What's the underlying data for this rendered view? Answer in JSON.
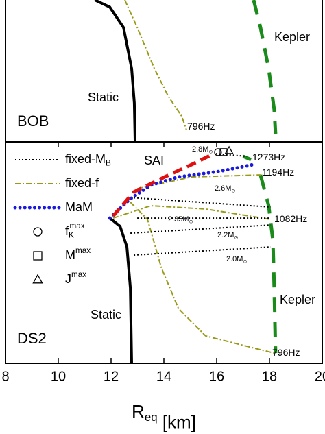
{
  "chart_data": [
    {
      "type": "line",
      "panel_label": "BOB",
      "xlim": [
        8,
        20
      ],
      "ylim": [
        0,
        100
      ],
      "series": [
        {
          "x": [
            11.38,
            11.95,
            12.47,
            12.78,
            12.88,
            12.91
          ],
          "values": [
            100,
            95,
            80.5,
            51.2,
            26.8,
            0
          ],
          "color": "#000000",
          "style": "solid"
        },
        {
          "x": [
            12.52,
            12.99,
            13.64,
            14.16,
            14.68,
            14.86
          ],
          "values": [
            100,
            80.5,
            51.2,
            31.7,
            17.1,
            7.3
          ],
          "color": "#9a9a1a",
          "style": "dashdot"
        },
        {
          "x": [
            17.4,
            17.66,
            17.97,
            18.18,
            18.23
          ],
          "values": [
            100,
            80.5,
            51.2,
            22,
            4.9
          ],
          "color": "#1a8a1a",
          "style": "dashed"
        }
      ],
      "annotations": [
        {
          "text": "Static"
        },
        {
          "text": "796Hz"
        },
        {
          "text": "Kepler"
        }
      ]
    },
    {
      "type": "line",
      "panel_label": "DS2",
      "xlim": [
        8,
        20
      ],
      "ylim": [
        0,
        100
      ],
      "xticks": [
        8,
        10,
        12,
        14,
        16,
        18,
        20
      ],
      "xlabel": {
        "text": "R",
        "sub": "eq",
        "rest": " [km]"
      },
      "series": [
        {
          "x": [
            11.95,
            12.34,
            12.6,
            12.73,
            12.78
          ],
          "values": [
            65.6,
            61.9,
            52.6,
            34.1,
            0
          ],
          "color": "#000000",
          "style": "solid"
        },
        {
          "x": [
            17.0,
            17.3,
            null,
            17.66,
            17.97,
            18.13,
            18.18,
            18.23
          ],
          "values": [
            93.5,
            92.0,
            null,
            85.1,
            71.2,
            55.7,
            34.1,
            4.6
          ],
          "color": "#1a8a1a",
          "style": "dashed"
        },
        {
          "x": [
            12.73,
            13.38,
            13.9,
            14.55,
            15.58,
            18.18,
            null,
            12.08,
            13.51,
            15.58,
            18.05,
            null,
            12.99,
            15.06,
            17.66
          ],
          "values": [
            72.8,
            65.0,
            43.3,
            24.8,
            12.4,
            4.6,
            null,
            65.6,
            71.2,
            69.7,
            65.0,
            null,
            78.9,
            84.2,
            85.1
          ],
          "color": "#9a9a1a",
          "style": "dashdot"
        },
        {
          "x": [
            12.73,
            18.05,
            null,
            12.99,
            18.05,
            null,
            12.73,
            18.05,
            null,
            12.86,
            18.05,
            null,
            15.97,
            17.14
          ],
          "values": [
            74.9,
            70.6,
            null,
            65.6,
            65.6,
            null,
            58.8,
            62.5,
            null,
            48.9,
            52.6,
            null,
            94.7,
            93.5
          ],
          "color": "#000000",
          "style": "dotted"
        },
        {
          "x": [
            11.95,
            12.73,
            13.51,
            14.55,
            16.1,
            17.4
          ],
          "values": [
            65.6,
            74.3,
            80.5,
            84.2,
            86.7,
            89.8
          ],
          "color": "#1a1adf",
          "style": "bigdot"
        },
        {
          "x": [
            12.08,
            12.86,
            14.03,
            15.06,
            15.84
          ],
          "values": [
            66.6,
            77.4,
            84.2,
            89.8,
            94.4
          ],
          "color": "#e01010",
          "style": "reddash"
        }
      ],
      "points": [
        {
          "x": 16.05,
          "y": 95.4,
          "shape": "circle"
        },
        {
          "x": 16.26,
          "y": 95.4,
          "shape": "square"
        },
        {
          "x": 16.47,
          "y": 96.0,
          "shape": "triangle"
        }
      ],
      "legend": [
        {
          "text": "fixed-M",
          "sub": "B",
          "style": "dotted",
          "color": "#000000"
        },
        {
          "text": "fixed-f",
          "style": "dashdot",
          "color": "#9a9a1a"
        },
        {
          "text": "MaM",
          "style": "bigdot",
          "color": "#1a1adf"
        },
        {
          "text": "f",
          "sub": "K",
          "sup": "max",
          "shape": "circle"
        },
        {
          "text": "M",
          "sup": "max",
          "shape": "square"
        },
        {
          "text": "J",
          "sup": "max",
          "shape": "triangle"
        }
      ],
      "annotations": [
        {
          "text": "Static"
        },
        {
          "text": "Kepler"
        },
        {
          "text": "SAI"
        },
        {
          "text": "1273Hz"
        },
        {
          "text": "1194Hz"
        },
        {
          "text": "1082Hz"
        },
        {
          "text": "796Hz"
        },
        {
          "text": "2.8M",
          "sub": "⊙"
        },
        {
          "text": "2.6M",
          "sub": "⊙"
        },
        {
          "text": "2.35M",
          "sub": "⊙"
        },
        {
          "text": "2.2M",
          "sub": "⊙"
        },
        {
          "text": "2.0M",
          "sub": "⊙"
        }
      ]
    }
  ]
}
